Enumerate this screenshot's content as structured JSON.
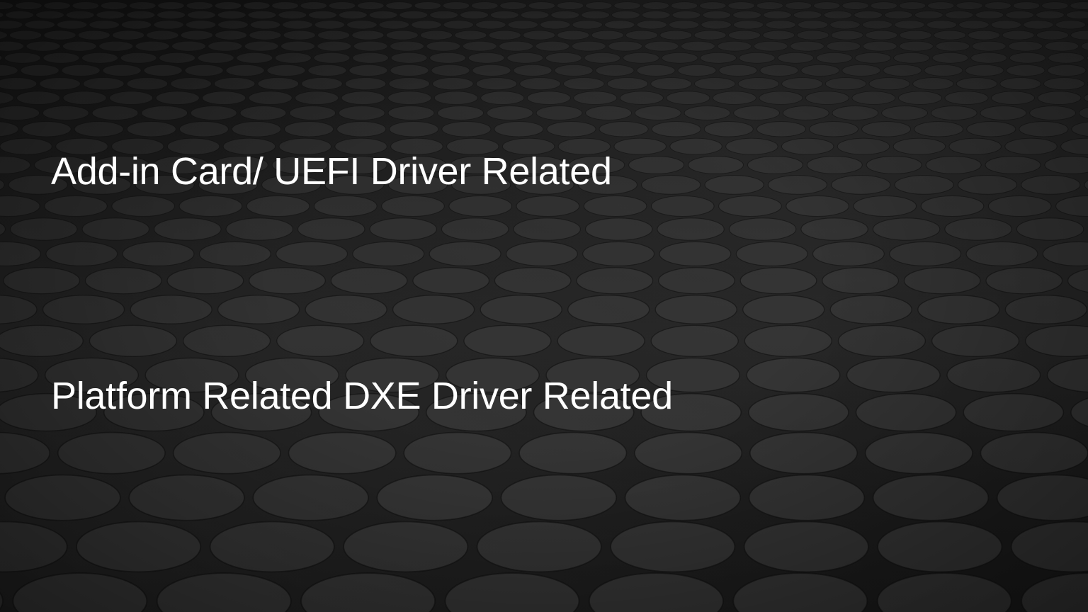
{
  "slide": {
    "line_1": "Add-in Card/ UEFI Driver Related",
    "line_2": "Platform Related DXE Driver Related"
  },
  "theme": {
    "background_color": "#1c1c1c",
    "disc_color": "#3a3a3a",
    "text_color": "#ffffff"
  }
}
